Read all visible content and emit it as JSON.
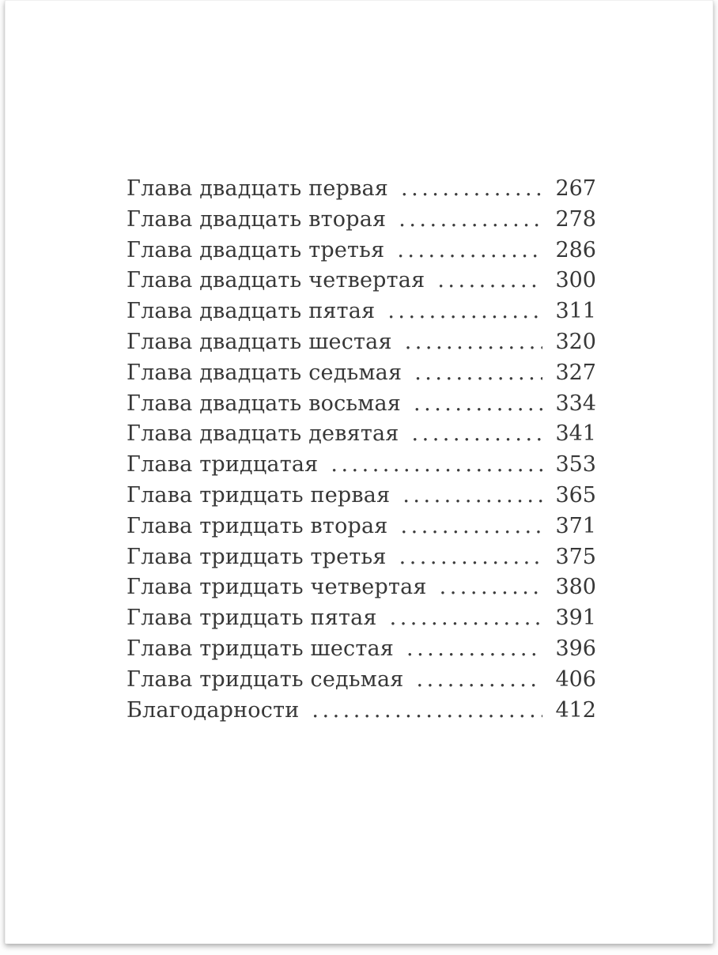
{
  "page": {
    "background_color": "#ffffff",
    "text_color": "#373737",
    "leader_dot": "."
  },
  "toc": {
    "entries": [
      {
        "label": "Глава двадцать первая",
        "page": "267"
      },
      {
        "label": "Глава двадцать вторая",
        "page": "278"
      },
      {
        "label": "Глава двадцать третья",
        "page": "286"
      },
      {
        "label": "Глава двадцать четвертая",
        "page": "300"
      },
      {
        "label": "Глава двадцать пятая",
        "page": "311"
      },
      {
        "label": "Глава двадцать шестая",
        "page": "320"
      },
      {
        "label": "Глава двадцать седьмая",
        "page": "327"
      },
      {
        "label": "Глава двадцать восьмая",
        "page": "334"
      },
      {
        "label": "Глава двадцать девятая",
        "page": "341"
      },
      {
        "label": "Глава тридцатая",
        "page": "353"
      },
      {
        "label": "Глава тридцать первая",
        "page": "365"
      },
      {
        "label": "Глава тридцать вторая",
        "page": "371"
      },
      {
        "label": "Глава тридцать третья",
        "page": "375"
      },
      {
        "label": "Глава тридцать четвертая",
        "page": "380"
      },
      {
        "label": "Глава тридцать пятая",
        "page": "391"
      },
      {
        "label": "Глава тридцать шестая",
        "page": "396"
      },
      {
        "label": "Глава тридцать седьмая",
        "page": "406"
      },
      {
        "label": "Благодарности",
        "page": "412"
      }
    ]
  }
}
